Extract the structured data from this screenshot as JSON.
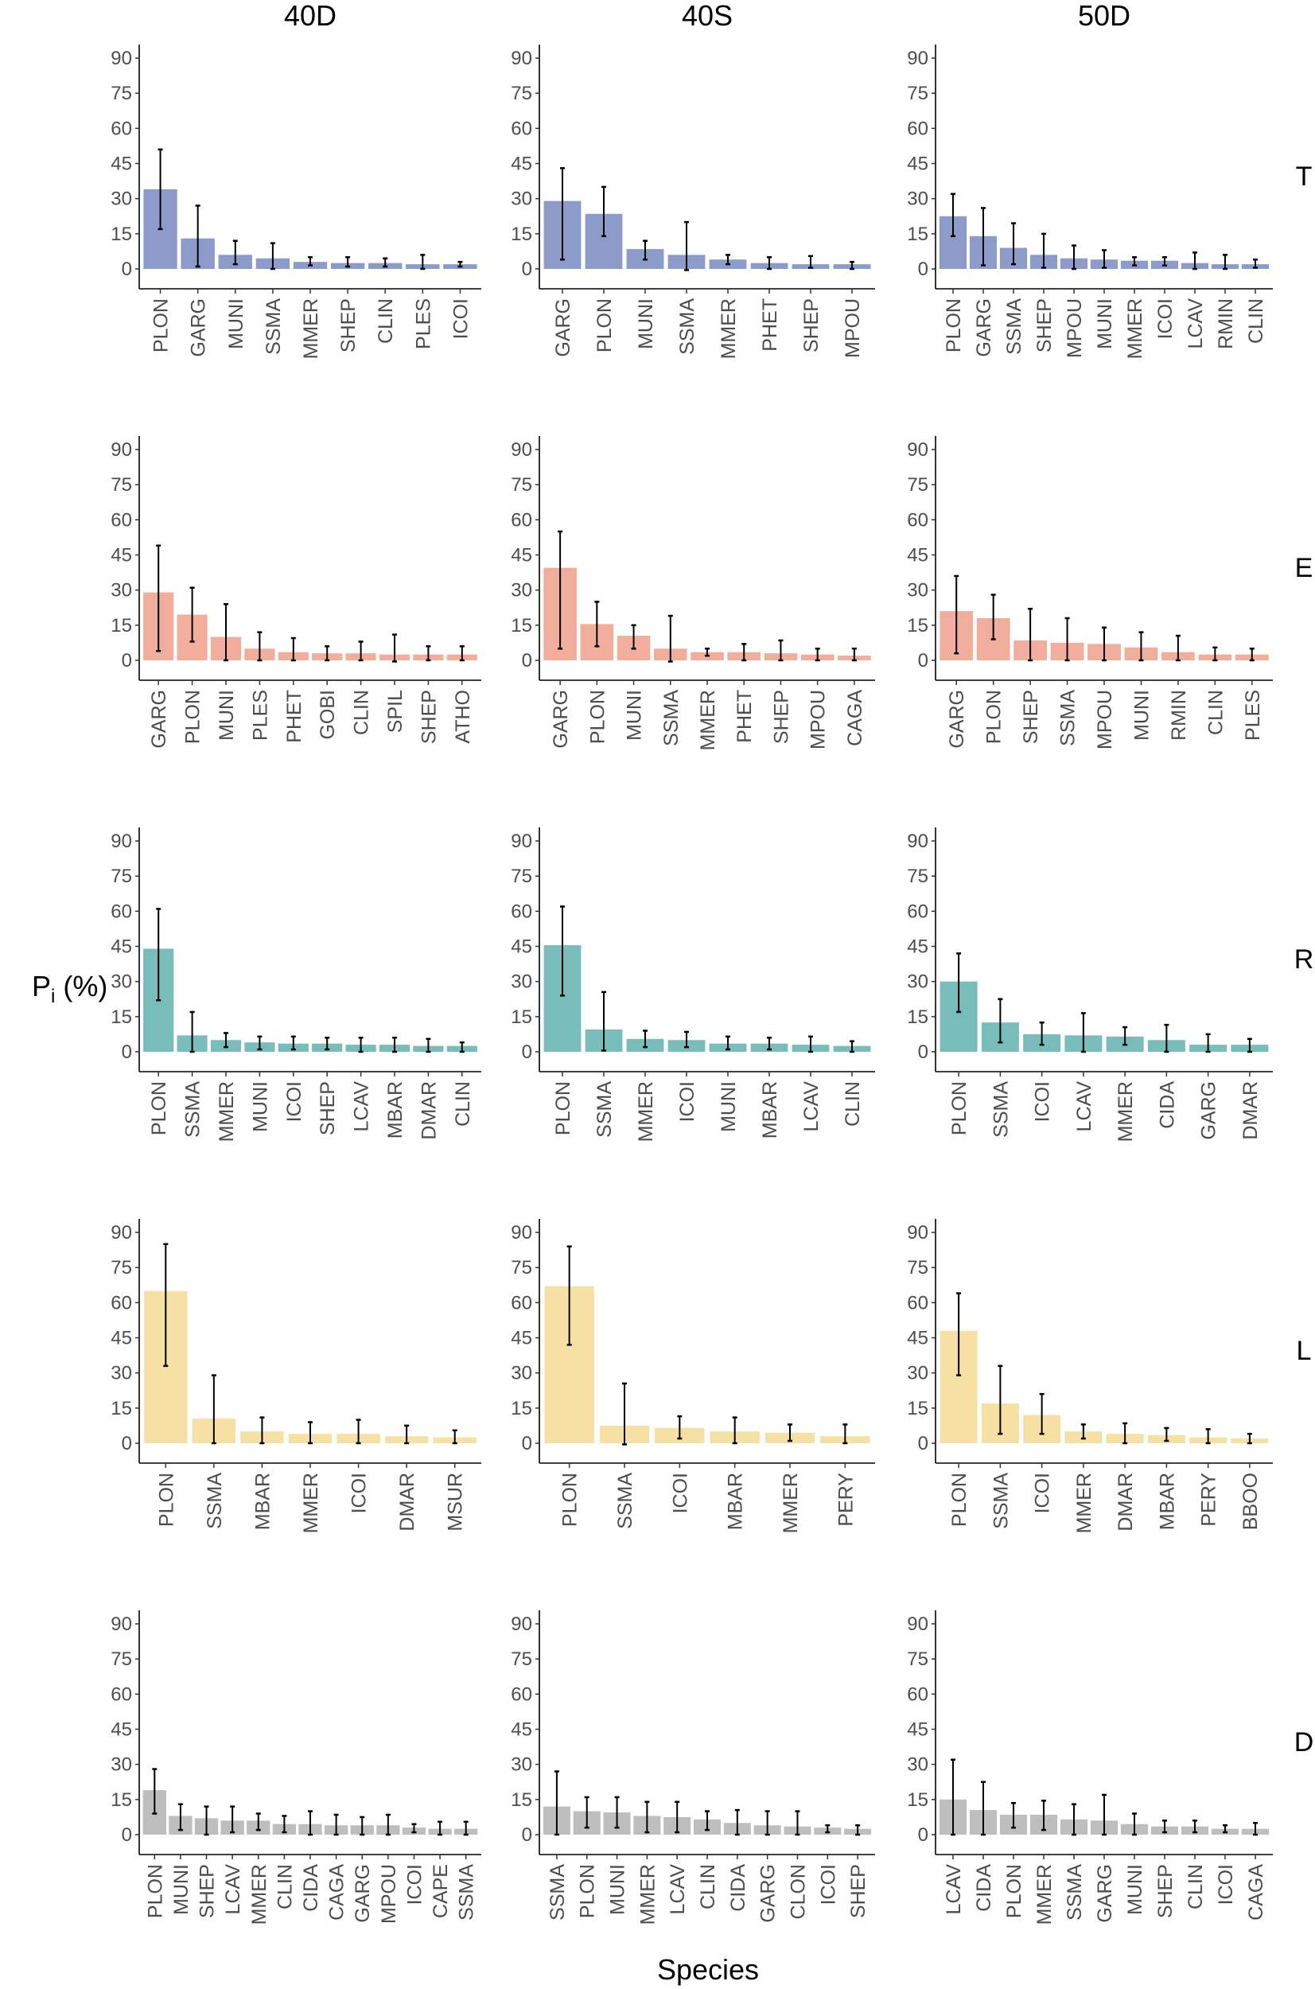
{
  "chart_data": {
    "type": "bar",
    "xlabel": "Species",
    "ylabel_main": "P",
    "ylabel_sub": "i",
    "ylabel_suffix": " (%)",
    "ylim": [
      0,
      95
    ],
    "yticks": [
      0,
      15,
      30,
      45,
      60,
      75,
      90
    ],
    "columns": [
      "40D",
      "40S",
      "50D"
    ],
    "rows": [
      {
        "label": "T",
        "color": "#8d9bcb"
      },
      {
        "label": "E",
        "color": "#f1ae9c"
      },
      {
        "label": "R",
        "color": "#79bdbb"
      },
      {
        "label": "L",
        "color": "#f6e0a3"
      },
      {
        "label": "D",
        "color": "#bebebe"
      }
    ],
    "panels": [
      {
        "row": 0,
        "col": 0,
        "categories": [
          "PLON",
          "GARG",
          "MUNI",
          "SSMA",
          "MMER",
          "SHEP",
          "CLIN",
          "PLES",
          "ICOI"
        ],
        "values": [
          34,
          13,
          6,
          4.5,
          3,
          2.5,
          2.5,
          2,
          2
        ],
        "lo": [
          17,
          1,
          2,
          0,
          1.5,
          1,
          1,
          0,
          1
        ],
        "hi": [
          51,
          27,
          12,
          11,
          5,
          5,
          4.5,
          6,
          3
        ]
      },
      {
        "row": 0,
        "col": 1,
        "categories": [
          "GARG",
          "PLON",
          "MUNI",
          "SSMA",
          "MMER",
          "PHET",
          "SHEP",
          "MPOU"
        ],
        "values": [
          29,
          23.5,
          8.5,
          6,
          4,
          2.5,
          2,
          2
        ],
        "lo": [
          4,
          14,
          4,
          -0.5,
          2,
          0,
          0.5,
          0
        ],
        "hi": [
          43,
          35,
          12,
          20,
          6,
          5,
          5.5,
          3
        ]
      },
      {
        "row": 0,
        "col": 2,
        "categories": [
          "PLON",
          "GARG",
          "SSMA",
          "SHEP",
          "MPOU",
          "MUNI",
          "MMER",
          "ICOI",
          "LCAV",
          "RMIN",
          "CLIN"
        ],
        "values": [
          22.5,
          14,
          9,
          6,
          4.5,
          4,
          3.5,
          3.5,
          2.5,
          2,
          2
        ],
        "lo": [
          14,
          1.5,
          2,
          0.5,
          0,
          0.5,
          1.5,
          1.5,
          0,
          0,
          0.5
        ],
        "hi": [
          32,
          26,
          19.5,
          15,
          10,
          8,
          5,
          5,
          7,
          6,
          4
        ]
      },
      {
        "row": 1,
        "col": 0,
        "categories": [
          "GARG",
          "PLON",
          "MUNI",
          "PLES",
          "PHET",
          "GOBI",
          "CLIN",
          "SPIL",
          "SHEP",
          "ATHO"
        ],
        "values": [
          29,
          19.5,
          10,
          5,
          3.5,
          3,
          3,
          2.5,
          2.5,
          2.5
        ],
        "lo": [
          4,
          8,
          0,
          0,
          0,
          0,
          0,
          -0.5,
          0,
          0
        ],
        "hi": [
          49,
          31,
          24,
          12,
          9.5,
          6,
          8,
          11,
          6,
          6
        ]
      },
      {
        "row": 1,
        "col": 1,
        "categories": [
          "GARG",
          "PLON",
          "MUNI",
          "SSMA",
          "MMER",
          "PHET",
          "SHEP",
          "MPOU",
          "CAGA"
        ],
        "values": [
          39.5,
          15.5,
          10.5,
          5,
          3.5,
          3.5,
          3,
          2.5,
          2
        ],
        "lo": [
          5,
          6,
          5,
          -0.5,
          2,
          0,
          0,
          0,
          0
        ],
        "hi": [
          55,
          25,
          15,
          19,
          5,
          7,
          8.5,
          5,
          5
        ]
      },
      {
        "row": 1,
        "col": 2,
        "categories": [
          "GARG",
          "PLON",
          "SHEP",
          "SSMA",
          "MPOU",
          "MUNI",
          "RMIN",
          "CLIN",
          "PLES"
        ],
        "values": [
          21,
          18,
          8.5,
          7.5,
          7,
          5.5,
          3.5,
          2.5,
          2.5
        ],
        "lo": [
          3,
          9,
          0,
          0,
          0,
          0,
          0,
          0,
          0
        ],
        "hi": [
          36,
          28,
          22,
          18,
          14,
          12,
          10.5,
          5.5,
          5
        ]
      },
      {
        "row": 2,
        "col": 0,
        "categories": [
          "PLON",
          "SSMA",
          "MMER",
          "MUNI",
          "ICOI",
          "SHEP",
          "LCAV",
          "MBAR",
          "DMAR",
          "CLIN"
        ],
        "values": [
          44,
          7,
          5,
          4,
          3.5,
          3.5,
          3,
          3,
          2.5,
          2.5
        ],
        "lo": [
          22,
          0,
          2,
          1,
          1,
          1,
          0,
          0,
          0,
          0
        ],
        "hi": [
          61,
          17,
          8,
          6.5,
          6.5,
          6,
          6,
          6,
          5.5,
          4
        ]
      },
      {
        "row": 2,
        "col": 1,
        "categories": [
          "PLON",
          "SSMA",
          "MMER",
          "ICOI",
          "MUNI",
          "MBAR",
          "LCAV",
          "CLIN"
        ],
        "values": [
          45.5,
          9.5,
          5.5,
          5,
          3.5,
          3.5,
          3,
          2.5
        ],
        "lo": [
          24,
          0.5,
          2,
          2,
          1,
          1,
          0,
          0
        ],
        "hi": [
          62,
          25.5,
          9,
          8.5,
          6.5,
          6,
          6.5,
          4.5
        ]
      },
      {
        "row": 2,
        "col": 2,
        "categories": [
          "PLON",
          "SSMA",
          "ICOI",
          "LCAV",
          "MMER",
          "CIDA",
          "GARG",
          "DMAR"
        ],
        "values": [
          30,
          12.5,
          7.5,
          7,
          6.5,
          5,
          3,
          3
        ],
        "lo": [
          17,
          4,
          3,
          0,
          3,
          0,
          0,
          0
        ],
        "hi": [
          42,
          22.5,
          12.5,
          16.5,
          10.5,
          11.5,
          7.5,
          5.5
        ]
      },
      {
        "row": 3,
        "col": 0,
        "categories": [
          "PLON",
          "SSMA",
          "MBAR",
          "MMER",
          "ICOI",
          "DMAR",
          "MSUR"
        ],
        "values": [
          65,
          10.5,
          5,
          4,
          4,
          3,
          2.5
        ],
        "lo": [
          33,
          0,
          0,
          0,
          0,
          0,
          0
        ],
        "hi": [
          85,
          29,
          11,
          9,
          10,
          7.5,
          5.5
        ]
      },
      {
        "row": 3,
        "col": 1,
        "categories": [
          "PLON",
          "SSMA",
          "ICOI",
          "MBAR",
          "MMER",
          "PERY"
        ],
        "values": [
          67,
          7.5,
          6.5,
          5,
          4.5,
          3
        ],
        "lo": [
          42,
          -0.5,
          2,
          0,
          1,
          0
        ],
        "hi": [
          84,
          25.5,
          11.5,
          11,
          8,
          8
        ]
      },
      {
        "row": 3,
        "col": 2,
        "categories": [
          "PLON",
          "SSMA",
          "ICOI",
          "MMER",
          "DMAR",
          "MBAR",
          "PERY",
          "BBOO"
        ],
        "values": [
          48,
          17,
          12,
          5,
          4,
          3.5,
          2.5,
          2
        ],
        "lo": [
          29,
          4,
          4,
          2,
          0,
          1,
          0,
          0
        ],
        "hi": [
          64,
          33,
          21,
          8,
          8.5,
          6.5,
          6,
          4
        ]
      },
      {
        "row": 4,
        "col": 0,
        "categories": [
          "PLON",
          "MUNI",
          "SHEP",
          "LCAV",
          "MMER",
          "CLIN",
          "CIDA",
          "CAGA",
          "GARG",
          "MPOU",
          "ICOI",
          "CAPE",
          "SSMA"
        ],
        "values": [
          19,
          8,
          7,
          6,
          6,
          4.5,
          4.5,
          4,
          4,
          4,
          3,
          2.5,
          2.5
        ],
        "lo": [
          9,
          2,
          0,
          1,
          2,
          1,
          0,
          0,
          0,
          0,
          1,
          0,
          0
        ],
        "hi": [
          28,
          13,
          12,
          12,
          9,
          8,
          10,
          8.5,
          7.5,
          8.5,
          4.5,
          5.5,
          5.5
        ]
      },
      {
        "row": 4,
        "col": 1,
        "categories": [
          "SSMA",
          "PLON",
          "MUNI",
          "MMER",
          "LCAV",
          "CLIN",
          "CIDA",
          "GARG",
          "CLON",
          "ICOI",
          "SHEP"
        ],
        "values": [
          12,
          10,
          9.5,
          8,
          7.5,
          6.5,
          5,
          4,
          3.5,
          3,
          2.5
        ],
        "lo": [
          0,
          3,
          3,
          1,
          1,
          2,
          0,
          0,
          0,
          1,
          0
        ],
        "hi": [
          27,
          16,
          16,
          14,
          14,
          10,
          10.5,
          10,
          10,
          4,
          4
        ]
      },
      {
        "row": 4,
        "col": 2,
        "categories": [
          "LCAV",
          "CIDA",
          "PLON",
          "MMER",
          "SSMA",
          "GARG",
          "MUNI",
          "SHEP",
          "CLIN",
          "ICOI",
          "CAGA"
        ],
        "values": [
          15,
          10.5,
          8.5,
          8.5,
          6.5,
          6,
          4.5,
          3.5,
          3.5,
          2.5,
          2.5
        ],
        "lo": [
          0,
          0,
          3,
          2,
          0,
          0,
          0,
          1,
          1,
          1,
          0
        ],
        "hi": [
          32,
          22.5,
          13.5,
          14.5,
          13,
          17,
          9,
          6,
          6,
          4,
          5
        ]
      }
    ]
  }
}
